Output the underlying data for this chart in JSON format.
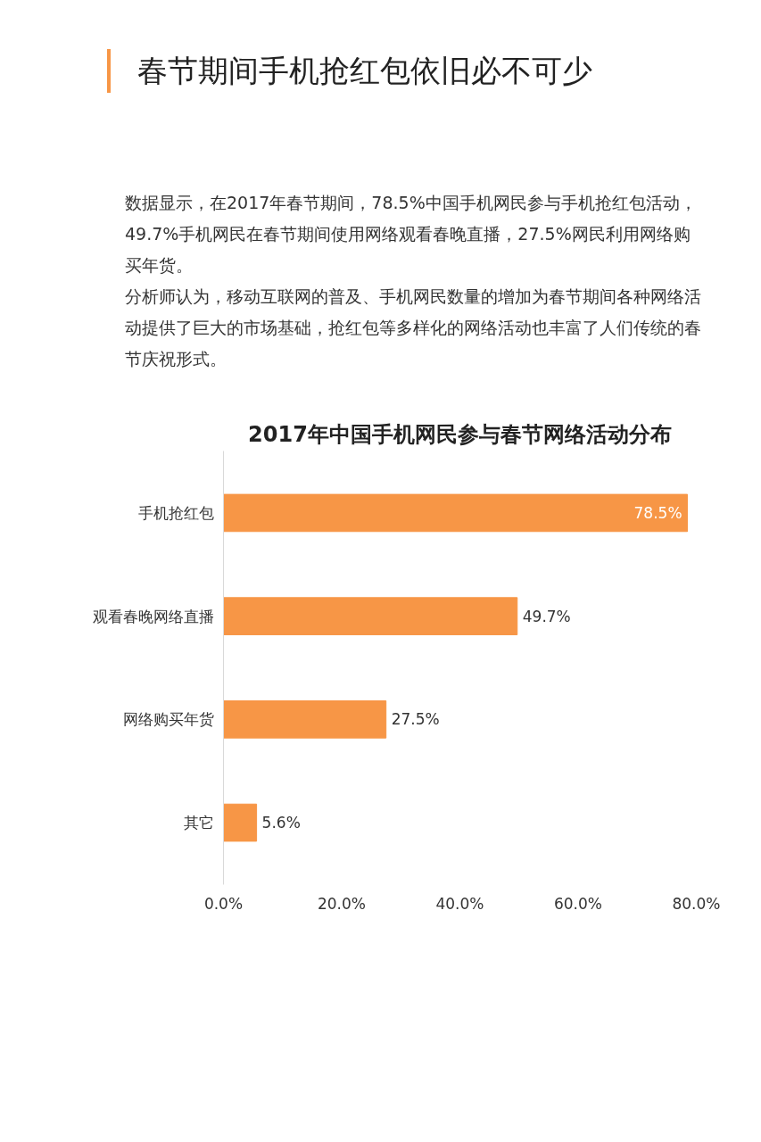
{
  "chart_data": {
    "type": "bar",
    "orientation": "horizontal",
    "title": "2017年中国手机网民参与春节网络活动分布",
    "categories": [
      "手机抢红包",
      "观看春晚网络直播",
      "网络购买年货",
      "其它"
    ],
    "values": [
      78.5,
      49.7,
      27.5,
      5.6
    ],
    "value_labels": [
      "78.5%",
      "49.7%",
      "27.5%",
      "5.6%"
    ],
    "color": "#f79646",
    "xlim": [
      0,
      80
    ],
    "xticks": [
      {
        "value": 0,
        "label": "0.0%"
      },
      {
        "value": 20,
        "label": "20.0%"
      },
      {
        "value": 40,
        "label": "40.0%"
      },
      {
        "value": 60,
        "label": "60.0%"
      },
      {
        "value": 80,
        "label": "80.0%"
      }
    ],
    "grid": false,
    "annotations": [
      "春节期间手机抢红包依旧必不可少",
      "数据显示，在2017年春节期间，78.5%中国手机网民参与手机抢红包活动，49.7%手机网民在春节期间使用网络观看春晚直播，27.5%网民利用网络购买年货。",
      "分析师认为，移动互联网的普及、手机网民数量的增加为春节期间各种网络活动提供了巨大的市场基础，抢红包等多样化的网络活动也丰富了人们传统的春节庆祝形式。"
    ]
  }
}
